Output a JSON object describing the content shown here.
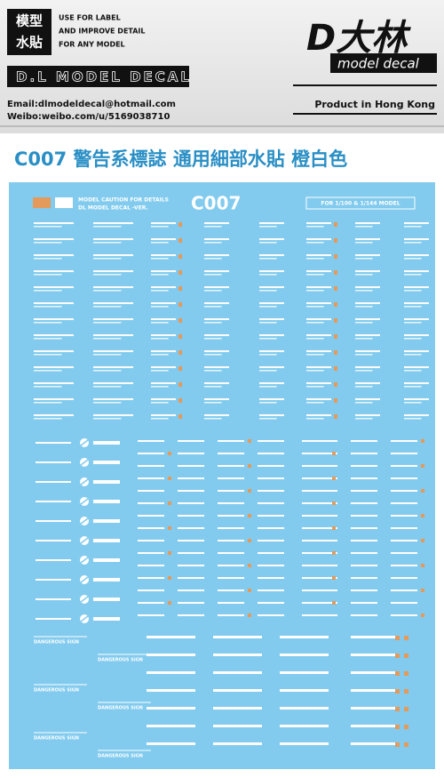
{
  "header": {
    "badge": [
      "模型",
      "水貼"
    ],
    "tagline": [
      "USE FOR LABEL",
      "AND IMPROVE DETAIL",
      "FOR ANY MODEL"
    ],
    "brand_band": "D.L MODEL DECAL",
    "logo": "D大林",
    "logo_sub": "model decal",
    "email": "Email:dlmodeldecal@hotmail.com",
    "weibo": "Weibo:weibo.com/u/5169038710",
    "origin": "Product in Hong Kong"
  },
  "title": "C007 警告系標誌 通用細部水貼 橙白色",
  "sheet": {
    "caption": [
      "MODEL CAUTION FOR DETAILS",
      "DL MODEL DECAL -VER."
    ],
    "code": "C007",
    "scale": "FOR 1/100 & 1/144 MODEL",
    "sign_labels": [
      "DANGEROUS SIGN",
      "DANGEROUS SIGN",
      "DANGEROUS SIGN",
      "DANGEROUS SIGN",
      "DANGEROUS SIGN",
      "DANGEROUS SIGN"
    ]
  }
}
